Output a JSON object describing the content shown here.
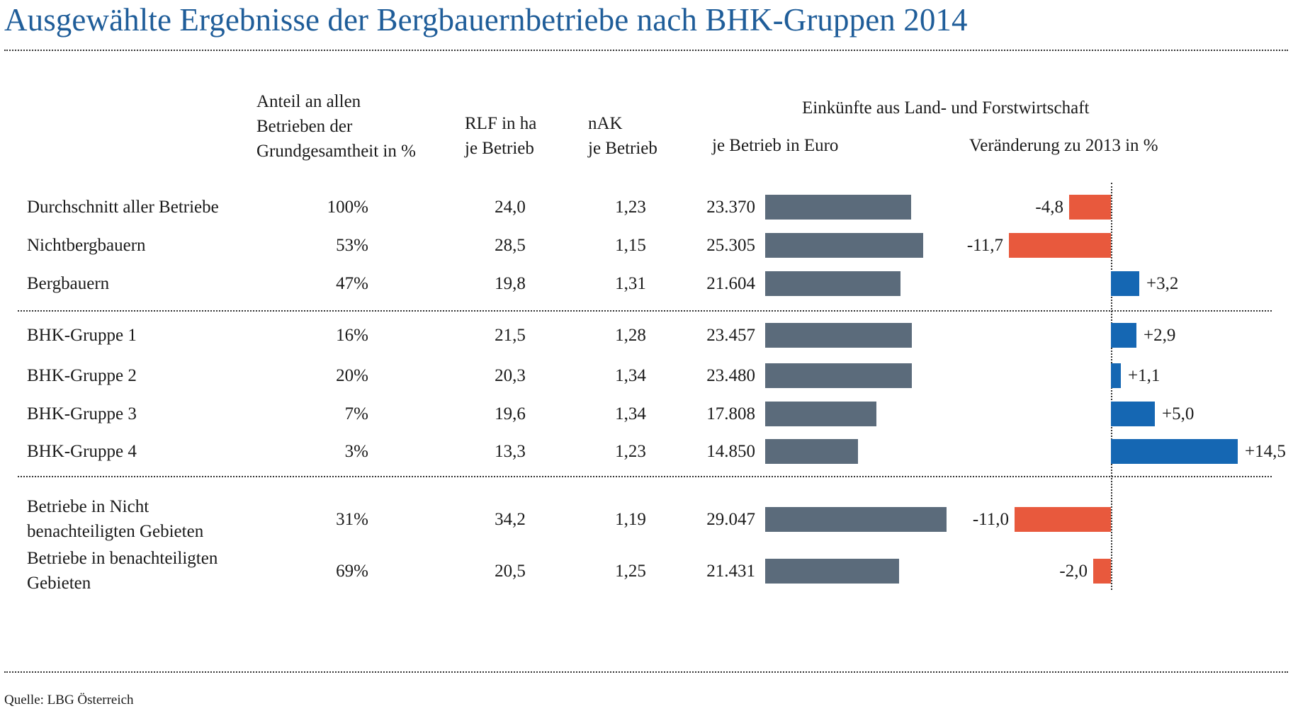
{
  "title": "Ausgewählte Ergebnisse der Bergbauernbetriebe nach BHK-Gruppen 2014",
  "source": "Quelle: LBG Österreich",
  "headers": {
    "share": [
      "Anteil an allen",
      "Betrieben der",
      "Grundgesamtheit in %"
    ],
    "rlf": [
      "RLF in ha",
      "je Betrieb"
    ],
    "nak": [
      "nAK",
      "je Betrieb"
    ],
    "income_group": "Einkünfte aus Land- und Forstwirtschaft",
    "income": "je Betrieb in Euro",
    "change": "Veränderung zu 2013 in %"
  },
  "colors": {
    "title": "#1f5d99",
    "income_bar": "#5b6b7b",
    "change_positive": "#1567b3",
    "change_negative": "#e8593d"
  },
  "chart_data": {
    "type": "table",
    "rows": [
      {
        "label": [
          "Durchschnitt aller Betriebe"
        ],
        "share": "100%",
        "rlf": "24,0",
        "nak": "1,23",
        "income_label": "23.370",
        "income": 23370,
        "change_label": "-4,8",
        "change": -4.8
      },
      {
        "label": [
          "Nichtbergbauern"
        ],
        "share": "53%",
        "rlf": "28,5",
        "nak": "1,15",
        "income_label": "25.305",
        "income": 25305,
        "change_label": "-11,7",
        "change": -11.7
      },
      {
        "label": [
          "Bergbauern"
        ],
        "share": "47%",
        "rlf": "19,8",
        "nak": "1,31",
        "income_label": "21.604",
        "income": 21604,
        "change_label": "+3,2",
        "change": 3.2
      },
      {
        "label": [
          "BHK-Gruppe 1"
        ],
        "share": "16%",
        "rlf": "21,5",
        "nak": "1,28",
        "income_label": "23.457",
        "income": 23457,
        "change_label": "+2,9",
        "change": 2.9
      },
      {
        "label": [
          "BHK-Gruppe 2"
        ],
        "share": "20%",
        "rlf": "20,3",
        "nak": "1,34",
        "income_label": "23.480",
        "income": 23480,
        "change_label": "+1,1",
        "change": 1.1
      },
      {
        "label": [
          "BHK-Gruppe 3"
        ],
        "share": "7%",
        "rlf": "19,6",
        "nak": "1,34",
        "income_label": "17.808",
        "income": 17808,
        "change_label": "+5,0",
        "change": 5.0
      },
      {
        "label": [
          "BHK-Gruppe 4"
        ],
        "share": "3%",
        "rlf": "13,3",
        "nak": "1,23",
        "income_label": "14.850",
        "income": 14850,
        "change_label": "+14,5",
        "change": 14.5
      },
      {
        "label": [
          "Betriebe in Nicht",
          "benachteiligten Gebieten"
        ],
        "share": "31%",
        "rlf": "34,2",
        "nak": "1,19",
        "income_label": "29.047",
        "income": 29047,
        "change_label": "-11,0",
        "change": -11.0
      },
      {
        "label": [
          "Betriebe in benachteiligten",
          "Gebieten"
        ],
        "share": "69%",
        "rlf": "20,5",
        "nak": "1,25",
        "income_label": "21.431",
        "income": 21431,
        "change_label": "-2,0",
        "change": -2.0
      }
    ]
  }
}
